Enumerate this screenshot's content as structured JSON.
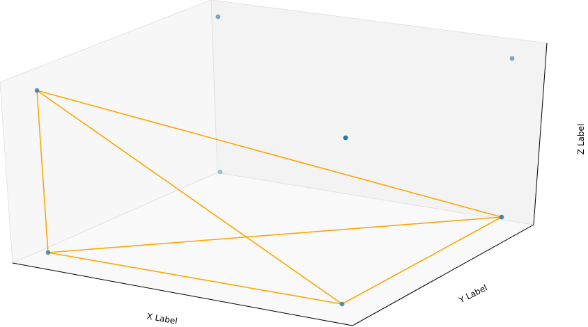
{
  "chart_data": {
    "type": "scatter",
    "projection": "3d",
    "title": "",
    "xlabel": "X Label",
    "ylabel": "Y Label",
    "zlabel": "Z Label",
    "grid": false,
    "tick_labels": false,
    "colors": {
      "points": "#1f77b4",
      "lines": "#ffa500",
      "pane_back": "#ebebeb",
      "pane_side": "#f2f2f2",
      "pane_floor": "#f7f7f7"
    },
    "series": [
      {
        "type": "scatter",
        "points": [
          {
            "id": "p1",
            "depth": "near",
            "screen_hint": "left-upper"
          },
          {
            "id": "p2",
            "depth": "near",
            "screen_hint": "left-lower"
          },
          {
            "id": "p3",
            "depth": "near",
            "screen_hint": "bottom-center"
          },
          {
            "id": "p4",
            "depth": "mid",
            "screen_hint": "right-lower"
          },
          {
            "id": "p5",
            "depth": "mid",
            "screen_hint": "center"
          },
          {
            "id": "p6",
            "depth": "far",
            "screen_hint": "right-upper"
          },
          {
            "id": "p7",
            "depth": "far",
            "screen_hint": "back-top"
          },
          {
            "id": "p8",
            "depth": "far",
            "screen_hint": "back-floor"
          }
        ]
      },
      {
        "type": "line",
        "edges": [
          [
            "p1",
            "p2"
          ],
          [
            "p1",
            "p4"
          ],
          [
            "p1",
            "p3"
          ],
          [
            "p2",
            "p4"
          ],
          [
            "p2",
            "p3"
          ],
          [
            "p3",
            "p4"
          ]
        ]
      }
    ]
  }
}
